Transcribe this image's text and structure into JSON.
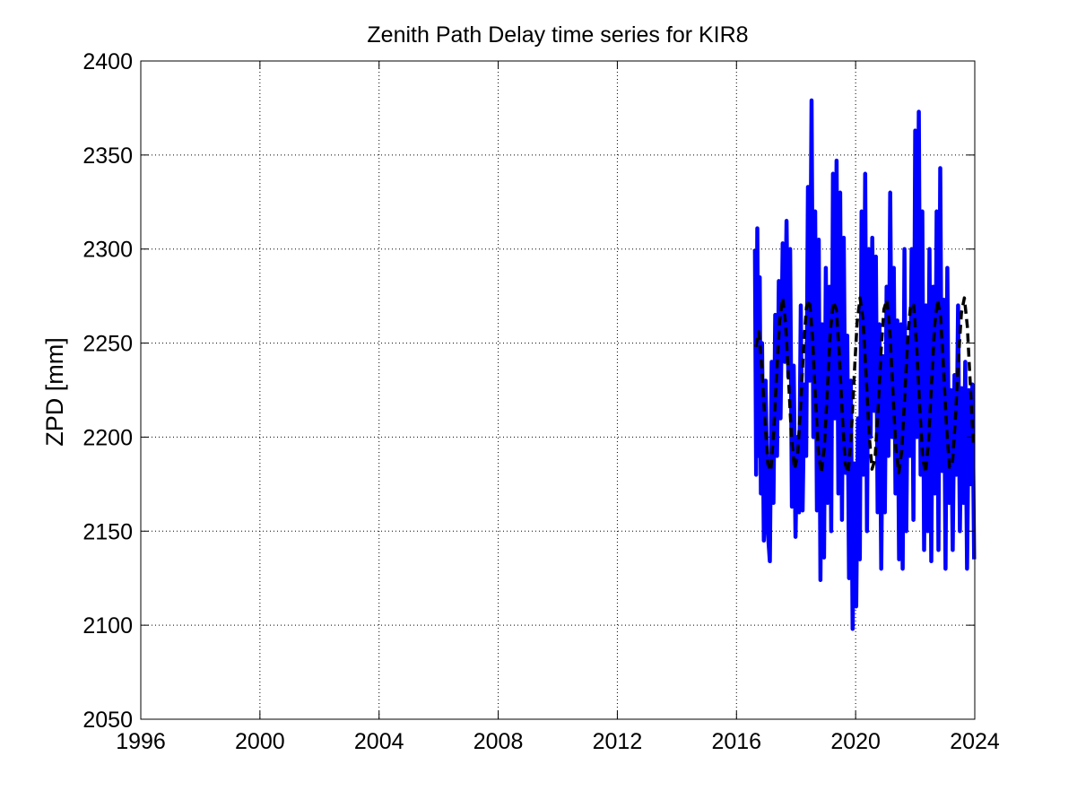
{
  "chart_data": {
    "type": "line",
    "title": "Zenith Path Delay time series for KIR8",
    "xlabel": "",
    "ylabel": "ZPD [mm]",
    "xlim": [
      1996,
      2024
    ],
    "ylim": [
      2050,
      2400
    ],
    "x_ticks": [
      "1996",
      "2000",
      "2004",
      "2008",
      "2012",
      "2016",
      "2020",
      "2024"
    ],
    "y_ticks": [
      "2050",
      "2100",
      "2150",
      "2200",
      "2250",
      "2300",
      "2350",
      "2400"
    ],
    "grid": true,
    "legend": "none",
    "colors": {
      "observed": "#0000ff",
      "model": "#000000"
    },
    "series": [
      {
        "style": "solid",
        "color": "#0000ff",
        "x": [
          2016.62,
          2016.66,
          2016.7,
          2016.74,
          2016.78,
          2016.82,
          2016.86,
          2016.92,
          2016.98,
          2017.05,
          2017.12,
          2017.18,
          2017.24,
          2017.3,
          2017.36,
          2017.42,
          2017.48,
          2017.55,
          2017.62,
          2017.68,
          2017.74,
          2017.8,
          2017.86,
          2017.92,
          2017.98,
          2018.04,
          2018.1,
          2018.16,
          2018.22,
          2018.28,
          2018.34,
          2018.4,
          2018.46,
          2018.52,
          2018.58,
          2018.64,
          2018.7,
          2018.76,
          2018.82,
          2018.88,
          2018.94,
          2019.0,
          2019.06,
          2019.12,
          2019.18,
          2019.24,
          2019.3,
          2019.36,
          2019.42,
          2019.48,
          2019.54,
          2019.6,
          2019.66,
          2019.72,
          2019.78,
          2019.84,
          2019.9,
          2019.96,
          2020.02,
          2020.08,
          2020.14,
          2020.2,
          2020.26,
          2020.32,
          2020.38,
          2020.44,
          2020.5,
          2020.56,
          2020.62,
          2020.68,
          2020.74,
          2020.8,
          2020.86,
          2020.92,
          2020.98,
          2021.04,
          2021.1,
          2021.16,
          2021.22,
          2021.28,
          2021.34,
          2021.4,
          2021.46,
          2021.52,
          2021.58,
          2021.64,
          2021.7,
          2021.76,
          2021.82,
          2021.88,
          2021.94,
          2022.0,
          2022.06,
          2022.12,
          2022.18,
          2022.24,
          2022.3,
          2022.36,
          2022.42,
          2022.48,
          2022.54,
          2022.6,
          2022.66,
          2022.72,
          2022.78,
          2022.84,
          2022.9,
          2022.96,
          2023.02,
          2023.08,
          2023.14,
          2023.2,
          2023.26,
          2023.32,
          2023.38,
          2023.44,
          2023.5,
          2023.56,
          2023.62,
          2023.68,
          2023.74,
          2023.8,
          2023.86,
          2023.92,
          2023.98
        ],
        "y": [
          2300,
          2180,
          2311,
          2190,
          2285,
          2170,
          2250,
          2145,
          2230,
          2150,
          2134,
          2240,
          2165,
          2265,
          2190,
          2283,
          2210,
          2303,
          2240,
          2315,
          2232,
          2300,
          2163,
          2238,
          2147,
          2200,
          2160,
          2270,
          2161,
          2228,
          2190,
          2333,
          2230,
          2379,
          2200,
          2320,
          2161,
          2305,
          2124,
          2260,
          2136,
          2290,
          2165,
          2280,
          2150,
          2340,
          2210,
          2347,
          2170,
          2330,
          2156,
          2306,
          2181,
          2254,
          2125,
          2230,
          2098,
          2186,
          2110,
          2210,
          2135,
          2320,
          2180,
          2340,
          2150,
          2300,
          2200,
          2306,
          2214,
          2296,
          2160,
          2260,
          2130,
          2243,
          2160,
          2280,
          2190,
          2330,
          2200,
          2290,
          2170,
          2262,
          2135,
          2260,
          2130,
          2300,
          2150,
          2250,
          2190,
          2300,
          2156,
          2363,
          2200,
          2373,
          2180,
          2320,
          2140,
          2270,
          2150,
          2300,
          2134,
          2280,
          2170,
          2320,
          2140,
          2343,
          2182,
          2273,
          2130,
          2290,
          2165,
          2225,
          2140,
          2233,
          2180,
          2270,
          2150,
          2226,
          2165,
          2240,
          2130,
          2225,
          2175,
          2228,
          2135
        ]
      },
      {
        "style": "dashed",
        "color": "#000000",
        "x": [
          2016.65,
          2016.75,
          2016.85,
          2016.95,
          2017.05,
          2017.15,
          2017.25,
          2017.35,
          2017.45,
          2017.55,
          2017.65,
          2017.75,
          2017.85,
          2017.95,
          2018.05,
          2018.15,
          2018.25,
          2018.35,
          2018.45,
          2018.55,
          2018.65,
          2018.75,
          2018.85,
          2018.95,
          2019.05,
          2019.15,
          2019.25,
          2019.35,
          2019.45,
          2019.55,
          2019.65,
          2019.75,
          2019.85,
          2019.95,
          2020.05,
          2020.15,
          2020.25,
          2020.35,
          2020.45,
          2020.55,
          2020.65,
          2020.75,
          2020.85,
          2020.95,
          2021.05,
          2021.15,
          2021.25,
          2021.35,
          2021.45,
          2021.55,
          2021.65,
          2021.75,
          2021.85,
          2021.95,
          2022.05,
          2022.15,
          2022.25,
          2022.35,
          2022.45,
          2022.55,
          2022.65,
          2022.75,
          2022.85,
          2022.95,
          2023.05,
          2023.15,
          2023.25,
          2023.35,
          2023.45,
          2023.55,
          2023.65,
          2023.75,
          2023.85,
          2023.95
        ],
        "y": [
          2248,
          2256,
          2237,
          2210,
          2186,
          2182,
          2203,
          2234,
          2262,
          2274,
          2260,
          2230,
          2199,
          2183,
          2190,
          2216,
          2247,
          2269,
          2273,
          2253,
          2221,
          2192,
          2181,
          2195,
          2225,
          2256,
          2272,
          2268,
          2244,
          2212,
          2186,
          2181,
          2200,
          2232,
          2261,
          2274,
          2262,
          2233,
          2202,
          2183,
          2188,
          2214,
          2245,
          2268,
          2273,
          2256,
          2224,
          2194,
          2181,
          2193,
          2222,
          2253,
          2271,
          2270,
          2248,
          2216,
          2189,
          2181,
          2198,
          2229,
          2259,
          2273,
          2264,
          2237,
          2206,
          2184,
          2186,
          2210,
          2241,
          2266,
          2274,
          2259,
          2228,
          2197
        ]
      }
    ]
  }
}
